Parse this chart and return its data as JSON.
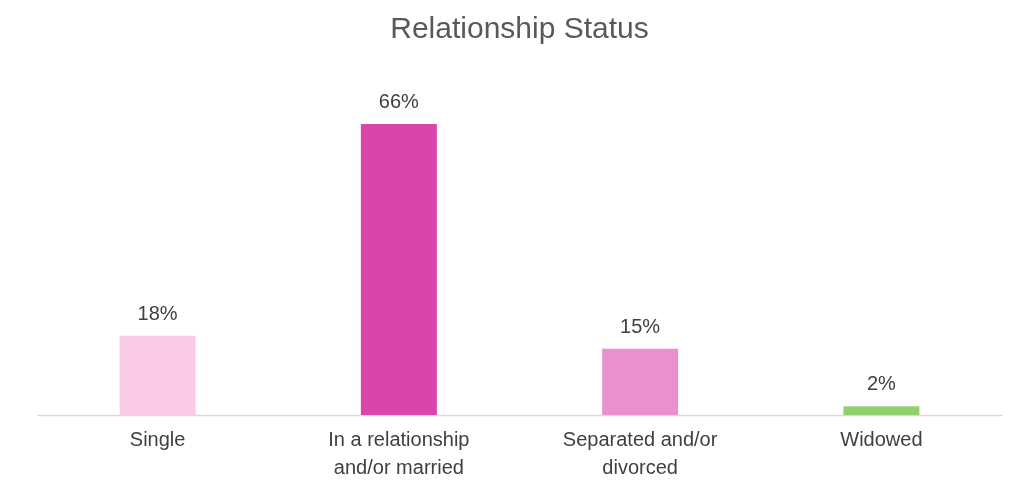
{
  "chart_data": {
    "type": "bar",
    "title": "Relationship Status",
    "categories": [
      "Single",
      "In a relationship and/or married",
      "Separated and/or divorced",
      "Widowed"
    ],
    "values": [
      18,
      66,
      15,
      2
    ],
    "value_labels": [
      "18%",
      "66%",
      "15%",
      "2%"
    ],
    "colors": [
      "#f9cbe5",
      "#d946ab",
      "#e891cc",
      "#92d06f"
    ],
    "grid": false,
    "legend": false
  }
}
